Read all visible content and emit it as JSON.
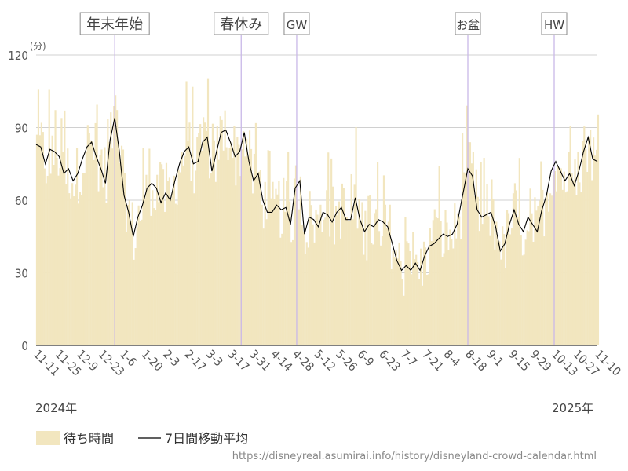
{
  "chart_data": {
    "type": "bar",
    "unit_label": "(分)",
    "ylim": [
      0,
      120
    ],
    "yticks": [
      "0",
      "30",
      "60",
      "90",
      "120"
    ],
    "x_start": "2024-11-11",
    "x_end": "2025-11-10",
    "x_ticks": [
      "11-11",
      "11-25",
      "12-9",
      "12-23",
      "1-6",
      "1-20",
      "2-3",
      "2-17",
      "3-3",
      "3-17",
      "3-31",
      "4-14",
      "4-28",
      "5-12",
      "5-26",
      "6-9",
      "6-23",
      "7-7",
      "7-21",
      "8-4",
      "8-18",
      "9-1",
      "9-15",
      "9-29",
      "10-13",
      "10-27",
      "11-10"
    ],
    "year_labels": [
      "2024年",
      "2025年"
    ],
    "annotations": [
      {
        "label": "年末年始",
        "tick": "1-1"
      },
      {
        "label": "春休み",
        "tick": "3-24"
      },
      {
        "label": "GW",
        "tick": "4-29"
      },
      {
        "label": "お盆",
        "tick": "8-18"
      },
      {
        "label": "HW",
        "tick": "10-13"
      }
    ],
    "series": [
      {
        "name": "待ち時間",
        "type": "bar",
        "color": "#f2e6bf"
      },
      {
        "name": "7日間移動平均",
        "type": "line",
        "color": "#000000"
      }
    ],
    "moving_average_points": [
      [
        "2024-11-11",
        83
      ],
      [
        "2024-11-14",
        82
      ],
      [
        "2024-11-17",
        75
      ],
      [
        "2024-11-20",
        81
      ],
      [
        "2024-11-23",
        80
      ],
      [
        "2024-11-26",
        78
      ],
      [
        "2024-11-29",
        71
      ],
      [
        "2024-12-02",
        73
      ],
      [
        "2024-12-05",
        68
      ],
      [
        "2024-12-08",
        71
      ],
      [
        "2024-12-11",
        77
      ],
      [
        "2024-12-14",
        82
      ],
      [
        "2024-12-17",
        84
      ],
      [
        "2024-12-20",
        78
      ],
      [
        "2024-12-23",
        73
      ],
      [
        "2024-12-26",
        67
      ],
      [
        "2024-12-29",
        85
      ],
      [
        "2025-01-01",
        94
      ],
      [
        "2025-01-04",
        80
      ],
      [
        "2025-01-07",
        62
      ],
      [
        "2025-01-10",
        55
      ],
      [
        "2025-01-13",
        45
      ],
      [
        "2025-01-16",
        53
      ],
      [
        "2025-01-19",
        58
      ],
      [
        "2025-01-22",
        65
      ],
      [
        "2025-01-25",
        67
      ],
      [
        "2025-01-28",
        65
      ],
      [
        "2025-01-31",
        59
      ],
      [
        "2025-02-03",
        63
      ],
      [
        "2025-02-06",
        60
      ],
      [
        "2025-02-09",
        68
      ],
      [
        "2025-02-12",
        75
      ],
      [
        "2025-02-15",
        80
      ],
      [
        "2025-02-18",
        82
      ],
      [
        "2025-02-21",
        75
      ],
      [
        "2025-02-24",
        76
      ],
      [
        "2025-02-27",
        84
      ],
      [
        "2025-03-02",
        86
      ],
      [
        "2025-03-05",
        72
      ],
      [
        "2025-03-08",
        80
      ],
      [
        "2025-03-11",
        88
      ],
      [
        "2025-03-14",
        89
      ],
      [
        "2025-03-17",
        84
      ],
      [
        "2025-03-20",
        78
      ],
      [
        "2025-03-23",
        80
      ],
      [
        "2025-03-26",
        88
      ],
      [
        "2025-03-29",
        76
      ],
      [
        "2025-04-01",
        68
      ],
      [
        "2025-04-04",
        71
      ],
      [
        "2025-04-07",
        60
      ],
      [
        "2025-04-10",
        55
      ],
      [
        "2025-04-13",
        55
      ],
      [
        "2025-04-16",
        58
      ],
      [
        "2025-04-19",
        56
      ],
      [
        "2025-04-22",
        57
      ],
      [
        "2025-04-25",
        50
      ],
      [
        "2025-04-28",
        65
      ],
      [
        "2025-05-01",
        68
      ],
      [
        "2025-05-04",
        46
      ],
      [
        "2025-05-07",
        53
      ],
      [
        "2025-05-10",
        52
      ],
      [
        "2025-05-13",
        49
      ],
      [
        "2025-05-16",
        55
      ],
      [
        "2025-05-19",
        54
      ],
      [
        "2025-05-22",
        51
      ],
      [
        "2025-05-25",
        55
      ],
      [
        "2025-05-28",
        57
      ],
      [
        "2025-05-31",
        52
      ],
      [
        "2025-06-03",
        52
      ],
      [
        "2025-06-06",
        61
      ],
      [
        "2025-06-09",
        52
      ],
      [
        "2025-06-12",
        47
      ],
      [
        "2025-06-15",
        50
      ],
      [
        "2025-06-18",
        49
      ],
      [
        "2025-06-21",
        52
      ],
      [
        "2025-06-24",
        51
      ],
      [
        "2025-06-27",
        49
      ],
      [
        "2025-06-30",
        42
      ],
      [
        "2025-07-03",
        35
      ],
      [
        "2025-07-06",
        31
      ],
      [
        "2025-07-09",
        33
      ],
      [
        "2025-07-12",
        31
      ],
      [
        "2025-07-15",
        34
      ],
      [
        "2025-07-18",
        31
      ],
      [
        "2025-07-21",
        37
      ],
      [
        "2025-07-24",
        41
      ],
      [
        "2025-07-27",
        42
      ],
      [
        "2025-07-30",
        44
      ],
      [
        "2025-08-02",
        46
      ],
      [
        "2025-08-05",
        45
      ],
      [
        "2025-08-08",
        46
      ],
      [
        "2025-08-11",
        50
      ],
      [
        "2025-08-14",
        60
      ],
      [
        "2025-08-18",
        73
      ],
      [
        "2025-08-21",
        70
      ],
      [
        "2025-08-24",
        56
      ],
      [
        "2025-08-27",
        53
      ],
      [
        "2025-08-30",
        54
      ],
      [
        "2025-09-02",
        55
      ],
      [
        "2025-09-05",
        49
      ],
      [
        "2025-09-08",
        39
      ],
      [
        "2025-09-11",
        42
      ],
      [
        "2025-09-14",
        50
      ],
      [
        "2025-09-17",
        56
      ],
      [
        "2025-09-20",
        50
      ],
      [
        "2025-09-23",
        47
      ],
      [
        "2025-09-26",
        53
      ],
      [
        "2025-09-29",
        50
      ],
      [
        "2025-10-02",
        47
      ],
      [
        "2025-10-05",
        56
      ],
      [
        "2025-10-08",
        62
      ],
      [
        "2025-10-11",
        72
      ],
      [
        "2025-10-14",
        76
      ],
      [
        "2025-10-17",
        72
      ],
      [
        "2025-10-20",
        68
      ],
      [
        "2025-10-23",
        71
      ],
      [
        "2025-10-26",
        66
      ],
      [
        "2025-10-29",
        72
      ],
      [
        "2025-11-01",
        80
      ],
      [
        "2025-11-04",
        86
      ],
      [
        "2025-11-07",
        77
      ],
      [
        "2025-11-10",
        76
      ]
    ]
  },
  "legend": {
    "bars": "待ち時間",
    "line": "7日間移動平均"
  },
  "source_url": "https://disneyreal.asumirai.info/history/disneyland-crowd-calendar.html"
}
